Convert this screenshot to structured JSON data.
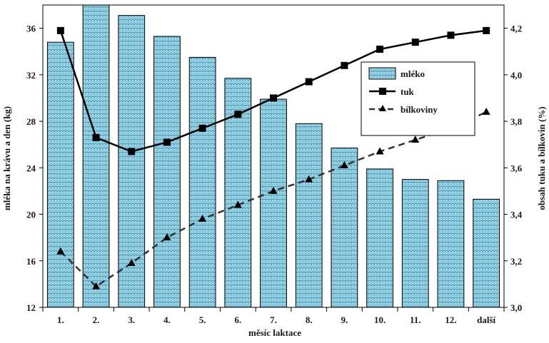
{
  "chart_data": {
    "type": "bar",
    "categories": [
      "1.",
      "2.",
      "3.",
      "4.",
      "5.",
      "6.",
      "7.",
      "8.",
      "9.",
      "10.",
      "11.",
      "12.",
      "další"
    ],
    "series": [
      {
        "name": "mléko",
        "type": "bar",
        "axis": "left",
        "values": [
          34.8,
          38.0,
          37.1,
          35.3,
          33.5,
          31.7,
          29.9,
          27.8,
          25.7,
          23.9,
          23.0,
          22.9,
          21.3
        ]
      },
      {
        "name": "tuk",
        "type": "line",
        "axis": "right",
        "values": [
          4.19,
          3.73,
          3.67,
          3.71,
          3.77,
          3.83,
          3.9,
          3.97,
          4.04,
          4.11,
          4.14,
          4.17,
          4.19
        ]
      },
      {
        "name": "bílkoviny",
        "type": "line",
        "axis": "right",
        "values": [
          3.24,
          3.09,
          3.19,
          3.3,
          3.38,
          3.44,
          3.5,
          3.55,
          3.61,
          3.67,
          3.72,
          3.77,
          3.84
        ]
      }
    ],
    "xlabel": "měsíc laktace",
    "ylabel": "mléka na krávu a den (kg)",
    "y2label": "obsah tuku a bílkovin (%)",
    "ylim": [
      12,
      38
    ],
    "y2lim": [
      3.0,
      4.3
    ],
    "yticks": [
      "12",
      "16",
      "20",
      "24",
      "28",
      "32",
      "36"
    ],
    "y2ticks": [
      "3,0",
      "3,2",
      "3,4",
      "3,6",
      "3,8",
      "4,0",
      "4,2"
    ],
    "legend_position": "right-middle",
    "grid": false,
    "colors": {
      "bar_fill": "#a8dcea",
      "bar_pattern": "#3a8fb0",
      "line": "#000000"
    }
  }
}
